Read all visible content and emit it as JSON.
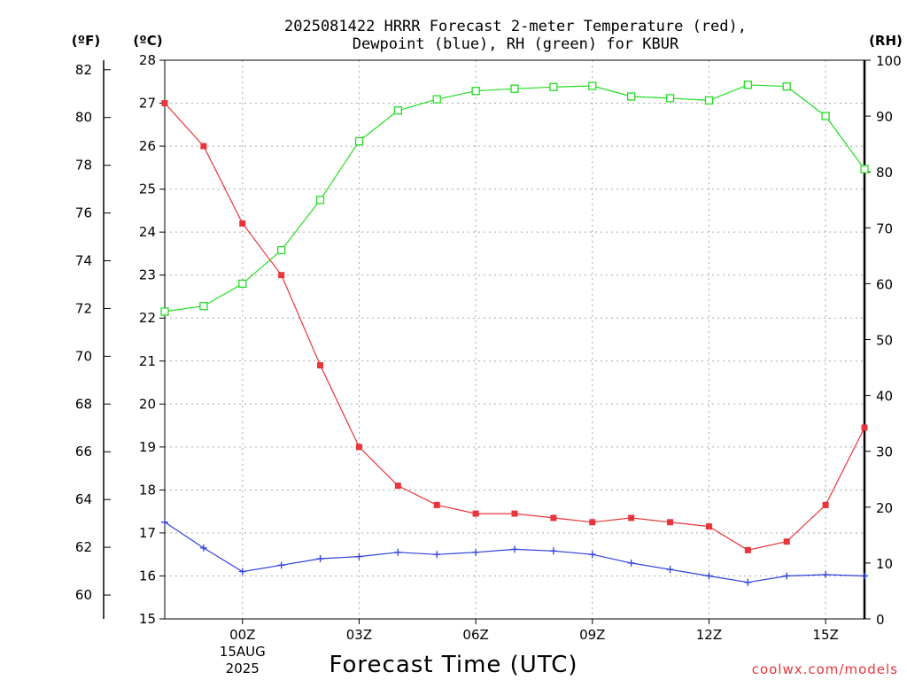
{
  "chart_data": {
    "type": "line",
    "title_lines": [
      "2025081422 HRRR Forecast 2-meter Temperature (red),",
      "Dewpoint (blue), RH (green) for KBUR"
    ],
    "units": {
      "fahrenheit": "(ºF)",
      "celsius": "(ºC)",
      "rh": "(RH)"
    },
    "xlabel": "Forecast Time (UTC)",
    "credit": "coolwx.com/models",
    "x_hours": [
      22,
      23,
      24,
      25,
      26,
      27,
      28,
      29,
      30,
      31,
      32,
      33,
      34,
      35,
      36,
      37,
      38,
      39,
      40
    ],
    "xlim": [
      22,
      40
    ],
    "x_ticks": [
      {
        "hour": 24,
        "label": "00Z",
        "sub": [
          "15AUG",
          "2025"
        ]
      },
      {
        "hour": 27,
        "label": "03Z",
        "sub": []
      },
      {
        "hour": 30,
        "label": "06Z",
        "sub": []
      },
      {
        "hour": 33,
        "label": "09Z",
        "sub": []
      },
      {
        "hour": 36,
        "label": "12Z",
        "sub": []
      },
      {
        "hour": 39,
        "label": "15Z",
        "sub": []
      }
    ],
    "celsius_axis": {
      "ylim": [
        15,
        28
      ],
      "ticks": [
        15,
        16,
        17,
        18,
        19,
        20,
        21,
        22,
        23,
        24,
        25,
        26,
        27,
        28
      ]
    },
    "fahrenheit_axis": {
      "ylim": [
        59,
        82.4
      ],
      "ticks": [
        60,
        62,
        64,
        66,
        68,
        70,
        72,
        74,
        76,
        78,
        80,
        82
      ]
    },
    "rh_axis": {
      "ylim": [
        0,
        100
      ],
      "ticks": [
        0,
        10,
        20,
        30,
        40,
        50,
        60,
        70,
        80,
        90,
        100
      ]
    },
    "grid": true,
    "series": [
      {
        "name": "Temperature",
        "axis": "celsius",
        "color": "#e8343a",
        "marker": "filled-square",
        "values": [
          27.0,
          26.0,
          24.2,
          23.0,
          20.9,
          19.0,
          18.1,
          17.65,
          17.45,
          17.45,
          17.35,
          17.25,
          17.35,
          17.25,
          17.15,
          16.6,
          16.8,
          17.65,
          19.45
        ]
      },
      {
        "name": "Dewpoint",
        "axis": "celsius",
        "color": "#2e3fdc",
        "marker": "plus",
        "values": [
          17.25,
          16.65,
          16.1,
          16.25,
          16.4,
          16.45,
          16.55,
          16.5,
          16.55,
          16.62,
          16.58,
          16.5,
          16.3,
          16.15,
          16.0,
          15.85,
          16.0,
          16.03,
          16.0
        ]
      },
      {
        "name": "RH",
        "axis": "rh",
        "color": "#22dd22",
        "marker": "open-square",
        "values": [
          55.0,
          56.0,
          60.0,
          66.0,
          75.0,
          85.5,
          91.0,
          93.0,
          94.5,
          94.9,
          95.2,
          95.4,
          93.5,
          93.2,
          92.8,
          95.6,
          95.3,
          90.0,
          80.5
        ]
      }
    ]
  }
}
